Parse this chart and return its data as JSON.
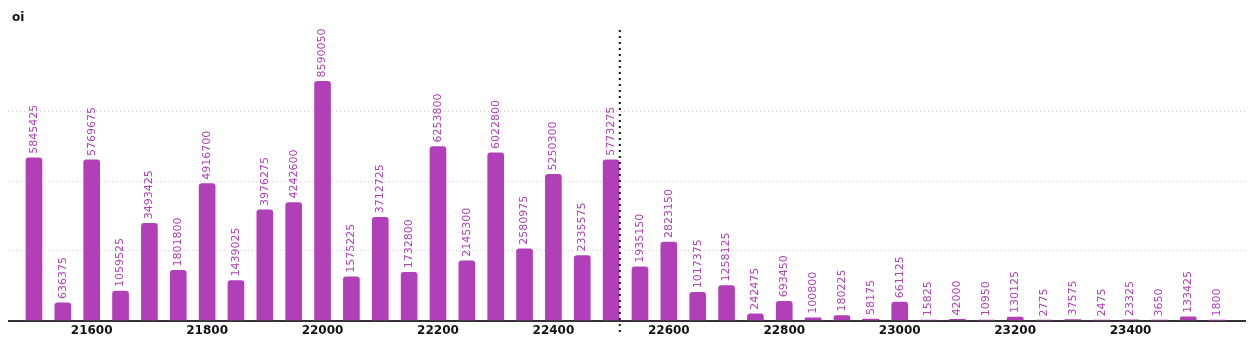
{
  "chart_data": {
    "type": "bar",
    "annotations": [
      "oi"
    ],
    "x": [
      21500,
      21550,
      21600,
      21650,
      21700,
      21750,
      21800,
      21850,
      21900,
      21950,
      22000,
      22050,
      22100,
      22150,
      22200,
      22250,
      22300,
      22350,
      22400,
      22450,
      22500,
      22550,
      22600,
      22650,
      22700,
      22750,
      22800,
      22850,
      22900,
      22950,
      23000,
      23050,
      23100,
      23150,
      23200,
      23250,
      23300,
      23350,
      23400,
      23450,
      23500,
      23550
    ],
    "series": [
      {
        "color": "#b03fb8",
        "values": [
          5845425,
          636375,
          5769675,
          1059525,
          3493425,
          1801800,
          4916700,
          1439025,
          3976275,
          4242600,
          8590050,
          1575225,
          3712725,
          1732800,
          6253800,
          2145300,
          6022800,
          2580975,
          5250300,
          2335575,
          5773275,
          1935150,
          2823150,
          1017375,
          1258125,
          242475,
          693450,
          100800,
          180225,
          58175,
          661125,
          15825,
          42000,
          10950,
          130125,
          2775,
          37575,
          2475,
          23325,
          3650,
          133425,
          1800
        ]
      }
    ],
    "xlim": [
      21455,
      23600
    ],
    "xticks": [
      21600,
      21800,
      22000,
      22200,
      22400,
      22600,
      22800,
      23000,
      23200,
      23400
    ],
    "yticks": [
      {
        "value": 0,
        "label": null
      },
      {
        "value": 2500000,
        "label": null
      },
      {
        "value": 5000000,
        "label": null
      },
      {
        "value": 7500000,
        "label": null
      }
    ],
    "tick_labels": "x",
    "grid": "y",
    "legend": false,
    "data_labels": true,
    "ref_lines": [
      {
        "axis": "x",
        "value": 22515,
        "color": "#111111",
        "line_style": "dotted"
      }
    ]
  }
}
